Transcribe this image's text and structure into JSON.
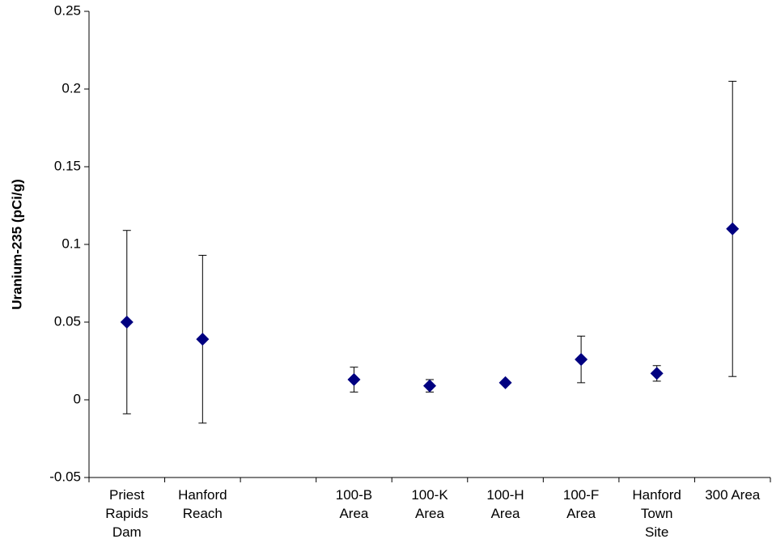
{
  "chart_data": {
    "type": "errorbar-scatter",
    "y_label": "Uranium-235 (pCi/g)",
    "categories": [
      "Priest\nRapids\nDam",
      "Hanford\nReach",
      null,
      "100-B\nArea",
      "100-K\nArea",
      "100-H\nArea",
      "100-F\nArea",
      "Hanford\nTown\nSite",
      "300 Area"
    ],
    "values": [
      0.05,
      0.039,
      null,
      0.013,
      0.009,
      0.011,
      0.026,
      0.017,
      0.11
    ],
    "errors": [
      0.059,
      0.054,
      null,
      0.008,
      0.004,
      0,
      0.015,
      0.005,
      0.095
    ],
    "color": "#000080",
    "ylim": [
      -0.05,
      0.25
    ],
    "yticks": [
      -0.05,
      0,
      0.05,
      0.1,
      0.15,
      0.2,
      0.25
    ],
    "grid": false
  }
}
